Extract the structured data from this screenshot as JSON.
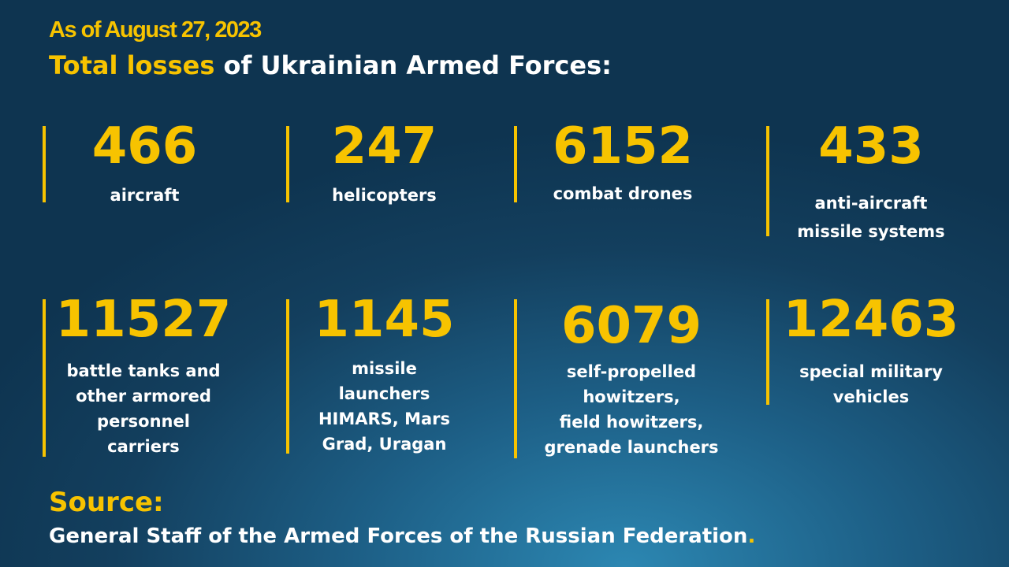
{
  "header": {
    "date": "As of August 27, 2023",
    "title_accent": "Total losses",
    "title_rest": " of Ukrainian Armed Forces:"
  },
  "stats": [
    {
      "value": "466",
      "label": "aircraft"
    },
    {
      "value": "247",
      "label": "helicopters"
    },
    {
      "value": "6152",
      "label": "combat drones"
    },
    {
      "value": "433",
      "label": "anti-aircraft\nmissile systems"
    },
    {
      "value": "11527",
      "label": "battle tanks and\nother armored\npersonnel\ncarriers"
    },
    {
      "value": "1145",
      "label": "missile\nlaunchers\nHIMARS, Mars\nGrad, Uragan"
    },
    {
      "value": "6079",
      "label": "self-propelled\nhowitzers,\nfield howitzers,\ngrenade launchers"
    },
    {
      "value": "12463",
      "label": "special military\nvehicles"
    }
  ],
  "source": {
    "label": "Source:",
    "text": "General Staff of the Armed Forces of the Russian Federation",
    "period": "."
  },
  "colors": {
    "accent": "#f7c300",
    "text": "#ffffff",
    "background": "#1d5f86"
  }
}
